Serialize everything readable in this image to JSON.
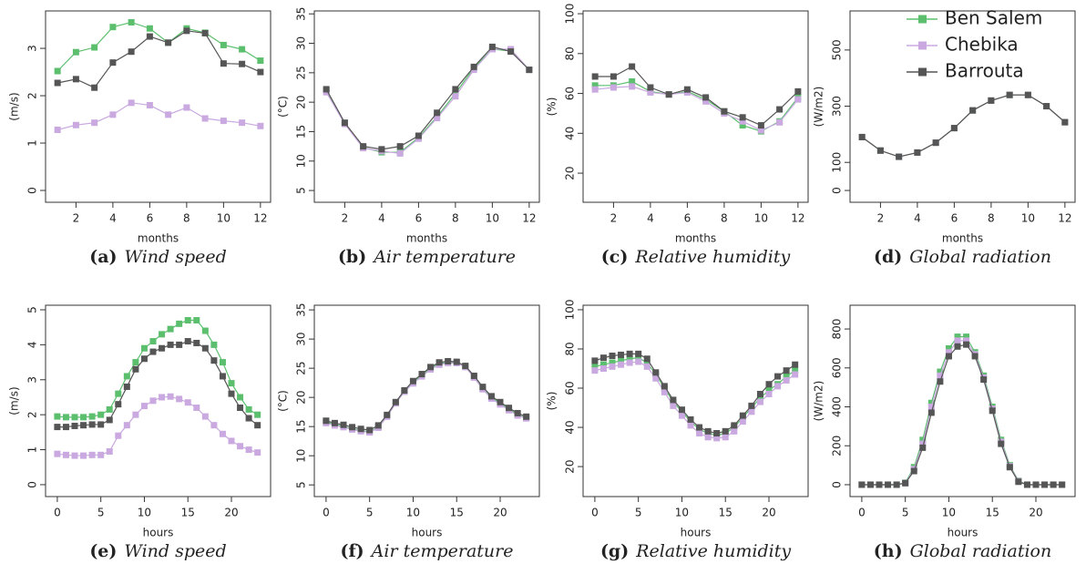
{
  "chart_data": [
    {
      "type": "line",
      "ylabel": "(m/s)",
      "xlabel": "months",
      "caption_label": "(a)",
      "caption": "Wind speed",
      "x": [
        1,
        2,
        3,
        4,
        5,
        6,
        7,
        8,
        9,
        10,
        11,
        12
      ],
      "xlim": [
        0.35,
        12.55
      ],
      "xticks": [
        2,
        4,
        6,
        8,
        10,
        12
      ],
      "ylim": [
        -0.25,
        3.79
      ],
      "yticks": [
        0,
        1,
        2,
        3
      ],
      "series": [
        {
          "color": "#5cbf6e",
          "values": [
            2.52,
            2.92,
            3.02,
            3.45,
            3.55,
            3.42,
            3.12,
            3.42,
            3.33,
            3.07,
            2.98,
            2.74
          ]
        },
        {
          "color": "#c9a9e0",
          "values": [
            1.28,
            1.38,
            1.43,
            1.6,
            1.85,
            1.8,
            1.6,
            1.75,
            1.52,
            1.47,
            1.43,
            1.36
          ]
        },
        {
          "color": "#555555",
          "values": [
            2.27,
            2.35,
            2.17,
            2.7,
            2.93,
            3.25,
            3.12,
            3.37,
            3.32,
            2.68,
            2.67,
            2.5
          ]
        }
      ]
    },
    {
      "type": "line",
      "ylabel": "(°C)",
      "xlabel": "months",
      "caption_label": "(b)",
      "caption": "Air temperature",
      "x": [
        1,
        2,
        3,
        4,
        5,
        6,
        7,
        8,
        9,
        10,
        11,
        12
      ],
      "xlim": [
        0.35,
        12.55
      ],
      "xticks": [
        2,
        4,
        6,
        8,
        10,
        12
      ],
      "ylim": [
        3,
        35.5
      ],
      "yticks": [
        5,
        10,
        15,
        20,
        25,
        30,
        35
      ],
      "series": [
        {
          "color": "#5cbf6e",
          "values": [
            22,
            16.5,
            12.3,
            11.5,
            11.5,
            14,
            17.5,
            21.5,
            25.8,
            29,
            28.7,
            25.5
          ]
        },
        {
          "color": "#c9a9e0",
          "values": [
            21.7,
            16.3,
            12.2,
            11.7,
            11.3,
            13.8,
            17.3,
            21,
            25.5,
            29,
            29,
            25.5
          ]
        },
        {
          "color": "#555555",
          "values": [
            22.2,
            16.5,
            12.5,
            12,
            12.5,
            14.3,
            18.2,
            22.2,
            26,
            29.4,
            28.6,
            25.5
          ]
        }
      ]
    },
    {
      "type": "line",
      "ylabel": "(%)",
      "xlabel": "months",
      "caption_label": "(c)",
      "caption": "Relative humidity",
      "x": [
        1,
        2,
        3,
        4,
        5,
        6,
        7,
        8,
        9,
        10,
        11,
        12
      ],
      "xlim": [
        0.35,
        12.55
      ],
      "xticks": [
        2,
        4,
        6,
        8,
        10,
        12
      ],
      "ylim": [
        5.4,
        101.4
      ],
      "yticks": [
        20,
        40,
        60,
        80,
        100
      ],
      "series": [
        {
          "color": "#5cbf6e",
          "values": [
            64,
            64,
            66,
            61,
            59.5,
            61,
            57,
            51,
            44,
            41,
            46,
            58
          ]
        },
        {
          "color": "#c9a9e0",
          "values": [
            62,
            63,
            63.5,
            60.5,
            59.5,
            60.5,
            56,
            50,
            46,
            41.5,
            45.5,
            57
          ]
        },
        {
          "color": "#555555",
          "values": [
            68.5,
            68.5,
            73.5,
            63,
            59.5,
            62,
            58,
            51,
            48,
            44,
            52,
            61
          ]
        }
      ]
    },
    {
      "type": "line",
      "ylabel": "(W/m2)",
      "xlabel": "months",
      "caption_label": "(d)",
      "caption": "Global radiation",
      "legend": "top-right",
      "x": [
        1,
        2,
        3,
        4,
        5,
        6,
        7,
        8,
        9,
        10,
        11,
        12
      ],
      "xlim": [
        0.35,
        12.55
      ],
      "xticks": [
        2,
        4,
        6,
        8,
        10,
        12
      ],
      "ylim": [
        -42,
        639
      ],
      "yticks": [
        0,
        100,
        300,
        500
      ],
      "series": [
        {
          "name": "Ben Salem",
          "color": "#5cbf6e",
          "values": [
            190,
            142,
            120,
            135,
            170,
            222,
            285,
            320,
            340,
            340,
            300,
            243
          ]
        },
        {
          "name": "Chebika",
          "color": "#c9a9e0",
          "values": [
            190,
            142,
            120,
            135,
            170,
            222,
            285,
            320,
            340,
            340,
            300,
            243
          ]
        },
        {
          "name": "Barrouta",
          "color": "#555555",
          "values": [
            190,
            142,
            120,
            135,
            170,
            222,
            285,
            320,
            340,
            340,
            300,
            243
          ]
        }
      ]
    },
    {
      "type": "line",
      "ylabel": "(m/s)",
      "xlabel": "hours",
      "caption_label": "(e)",
      "caption": "Wind speed",
      "x": [
        0,
        1,
        2,
        3,
        4,
        5,
        6,
        7,
        8,
        9,
        10,
        11,
        12,
        13,
        14,
        15,
        16,
        17,
        18,
        19,
        20,
        21,
        22,
        23
      ],
      "xlim": [
        -1.35,
        24.5
      ],
      "xticks": [
        0,
        5,
        10,
        15,
        20
      ],
      "ylim": [
        -0.34,
        5.13
      ],
      "yticks": [
        0,
        1,
        2,
        3,
        4,
        5
      ],
      "series": [
        {
          "color": "#5cbf6e",
          "values": [
            1.95,
            1.93,
            1.93,
            1.93,
            1.95,
            2.0,
            2.15,
            2.6,
            3.1,
            3.5,
            3.9,
            4.1,
            4.3,
            4.45,
            4.6,
            4.7,
            4.7,
            4.4,
            4.0,
            3.5,
            2.9,
            2.5,
            2.15,
            2.0
          ]
        },
        {
          "color": "#c9a9e0",
          "values": [
            0.88,
            0.85,
            0.83,
            0.83,
            0.85,
            0.85,
            0.95,
            1.4,
            1.7,
            2.0,
            2.25,
            2.4,
            2.5,
            2.52,
            2.45,
            2.35,
            2.2,
            1.95,
            1.7,
            1.45,
            1.25,
            1.1,
            1.0,
            0.92
          ]
        },
        {
          "color": "#555555",
          "values": [
            1.65,
            1.65,
            1.68,
            1.7,
            1.72,
            1.72,
            1.85,
            2.3,
            2.8,
            3.3,
            3.6,
            3.8,
            3.9,
            4.0,
            4.0,
            4.1,
            4.05,
            3.9,
            3.55,
            3.1,
            2.6,
            2.2,
            1.9,
            1.7
          ]
        }
      ]
    },
    {
      "type": "line",
      "ylabel": "(°C)",
      "xlabel": "hours",
      "caption_label": "(f)",
      "caption": "Air temperature",
      "x": [
        0,
        1,
        2,
        3,
        4,
        5,
        6,
        7,
        8,
        9,
        10,
        11,
        12,
        13,
        14,
        15,
        16,
        17,
        18,
        19,
        20,
        21,
        22,
        23
      ],
      "xlim": [
        -1.35,
        24.5
      ],
      "xticks": [
        0,
        5,
        10,
        15,
        20
      ],
      "ylim": [
        3,
        35.8
      ],
      "yticks": [
        5,
        10,
        15,
        20,
        25,
        30,
        35
      ],
      "series": [
        {
          "color": "#5cbf6e",
          "values": [
            15.8,
            15.4,
            15.0,
            14.6,
            14.3,
            14.1,
            14.9,
            16.8,
            19,
            21,
            22.6,
            23.8,
            25,
            25.8,
            26,
            26,
            25.3,
            23.5,
            21.5,
            20,
            19,
            18,
            17,
            16.5
          ]
        },
        {
          "color": "#c9a9e0",
          "values": [
            15.6,
            15.2,
            14.9,
            14.5,
            14.2,
            14.0,
            14.8,
            16.7,
            19,
            21,
            22.4,
            23.6,
            24.8,
            25.6,
            25.9,
            25.9,
            25.2,
            23.4,
            21.4,
            19.8,
            18.8,
            17.8,
            16.9,
            16.4
          ]
        },
        {
          "color": "#555555",
          "values": [
            16.0,
            15.6,
            15.3,
            14.9,
            14.6,
            14.4,
            15.2,
            17,
            19.2,
            21.2,
            22.8,
            24,
            25.2,
            26,
            26.2,
            26.1,
            25.4,
            23.7,
            21.8,
            20.2,
            19.2,
            18.2,
            17.3,
            16.7
          ]
        }
      ]
    },
    {
      "type": "line",
      "ylabel": "(%)",
      "xlabel": "hours",
      "caption_label": "(g)",
      "caption": "Relative humidity",
      "x": [
        0,
        1,
        2,
        3,
        4,
        5,
        6,
        7,
        8,
        9,
        10,
        11,
        12,
        13,
        14,
        15,
        16,
        17,
        18,
        19,
        20,
        21,
        22,
        23
      ],
      "xlim": [
        -1.35,
        24.5
      ],
      "xticks": [
        0,
        5,
        10,
        15,
        20
      ],
      "ylim": [
        4.7,
        102.3
      ],
      "yticks": [
        20,
        40,
        60,
        80,
        100
      ],
      "series": [
        {
          "color": "#5cbf6e",
          "values": [
            71,
            72,
            73,
            74,
            75,
            75.5,
            73,
            67,
            60,
            53,
            48,
            43,
            39,
            37,
            36,
            37,
            40,
            45,
            50,
            55,
            59,
            62,
            66,
            69
          ]
        },
        {
          "color": "#c9a9e0",
          "values": [
            69,
            70,
            71,
            72,
            73,
            73.5,
            71,
            65,
            58,
            51,
            46,
            41,
            37,
            35,
            34.5,
            35,
            38,
            43,
            48,
            53,
            57,
            61,
            64,
            67
          ]
        },
        {
          "color": "#555555",
          "values": [
            74,
            75.5,
            76.5,
            77,
            77.5,
            77.5,
            75,
            68,
            61,
            54,
            49,
            44,
            40,
            38,
            37,
            38,
            41,
            46,
            51,
            57,
            62,
            66,
            69,
            72
          ]
        }
      ]
    },
    {
      "type": "line",
      "ylabel": "(W/m2)",
      "xlabel": "hours",
      "caption_label": "(h)",
      "caption": "Global radiation",
      "x": [
        0,
        1,
        2,
        3,
        4,
        5,
        6,
        7,
        8,
        9,
        10,
        11,
        12,
        13,
        14,
        15,
        16,
        17,
        18,
        19,
        20,
        21,
        22,
        23
      ],
      "xlim": [
        -1.35,
        24.5
      ],
      "xticks": [
        0,
        5,
        10,
        15,
        20
      ],
      "ylim": [
        -61,
        922
      ],
      "yticks": [
        0,
        200,
        400,
        600,
        800
      ],
      "series": [
        {
          "color": "#5cbf6e",
          "values": [
            0,
            0,
            0,
            0,
            0,
            10,
            90,
            230,
            420,
            580,
            700,
            760,
            760,
            680,
            560,
            400,
            230,
            100,
            20,
            0,
            0,
            0,
            0,
            0
          ]
        },
        {
          "color": "#c9a9e0",
          "values": [
            0,
            0,
            0,
            0,
            0,
            8,
            80,
            210,
            400,
            560,
            680,
            740,
            740,
            670,
            550,
            390,
            220,
            95,
            18,
            0,
            0,
            0,
            0,
            0
          ]
        },
        {
          "color": "#555555",
          "values": [
            0,
            0,
            0,
            0,
            0,
            8,
            70,
            190,
            370,
            530,
            660,
            710,
            720,
            660,
            540,
            380,
            210,
            90,
            15,
            0,
            0,
            0,
            0,
            0
          ]
        }
      ]
    }
  ]
}
